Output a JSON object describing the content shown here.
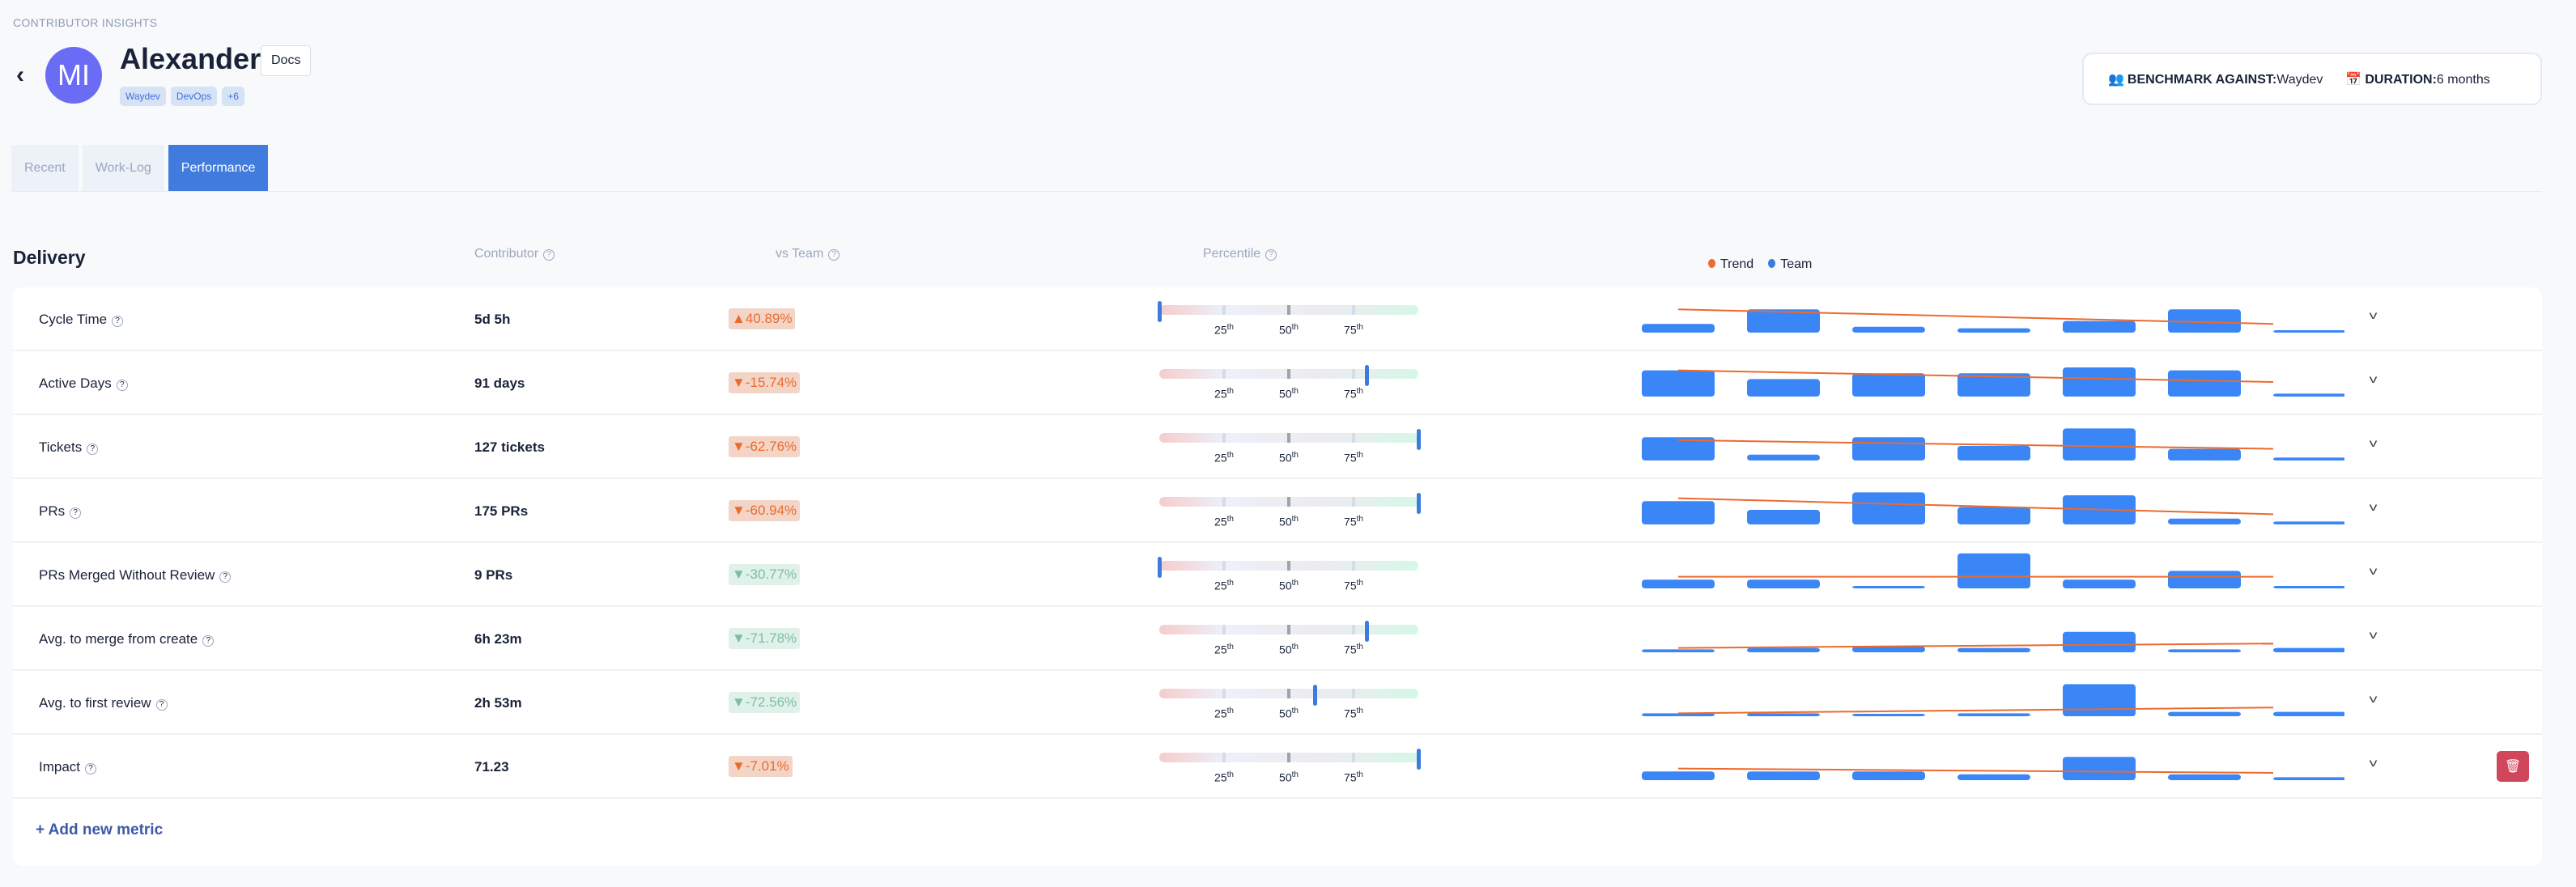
{
  "breadcrumb": "CONTRIBUTOR INSIGHTS",
  "profile": {
    "initials": "MI",
    "name": "Alexander",
    "docs_label": "Docs",
    "tags": [
      "Waydev",
      "DevOps",
      "+6"
    ]
  },
  "benchmark": {
    "label": "BENCHMARK AGAINST:",
    "value": "Waydev",
    "duration_label": "DURATION:",
    "duration_value": "6 months"
  },
  "tabs": [
    "Recent",
    "Work-Log",
    "Performance"
  ],
  "active_tab": "Performance",
  "table": {
    "section": "Delivery",
    "col_contributor": "Contributor",
    "col_vs_team": "vs Team",
    "col_percentile": "Percentile",
    "percentile_labels": [
      {
        "n": "25",
        "s": "th"
      },
      {
        "n": "50",
        "s": "th"
      },
      {
        "n": "75",
        "s": "th"
      }
    ],
    "legend": [
      {
        "label": "Trend",
        "color": "#ec6a2e"
      },
      {
        "label": "Team",
        "color": "#3c7be0"
      }
    ]
  },
  "colors": {
    "accent": "#427bde",
    "bar": "#3b86f7",
    "trend": "#ec6a2e",
    "delete": "#d0465a"
  },
  "metrics": [
    {
      "label": "Cycle Time",
      "value": "5d 5h",
      "vs_team": "▲40.89%",
      "status": "bad",
      "percentile": 0,
      "bars": [
        3,
        8,
        2,
        1.5,
        4,
        8,
        0.5
      ],
      "trend": [
        8,
        3
      ]
    },
    {
      "label": "Active Days",
      "value": "91 days",
      "vs_team": "▼-15.74%",
      "status": "bad",
      "percentile": 0.8,
      "bars": [
        9,
        6,
        8,
        8,
        10,
        9,
        1
      ],
      "trend": [
        9,
        5
      ]
    },
    {
      "label": "Tickets",
      "value": "127 tickets",
      "vs_team": "▼-62.76%",
      "status": "bad",
      "percentile": 1,
      "bars": [
        8,
        2,
        8,
        5,
        11,
        4,
        1
      ],
      "trend": [
        7,
        4
      ]
    },
    {
      "label": "PRs",
      "value": "175 PRs",
      "vs_team": "▼-60.94%",
      "status": "bad",
      "percentile": 1,
      "bars": [
        8,
        5,
        11,
        6,
        10,
        2,
        1
      ],
      "trend": [
        9,
        3.5
      ]
    },
    {
      "label": "PRs Merged Without Review",
      "value": "9 PRs",
      "vs_team": "▼-30.77%",
      "status": "good",
      "percentile": 0,
      "bars": [
        3,
        3,
        0,
        12,
        3,
        6,
        0
      ],
      "trend": [
        4,
        4
      ]
    },
    {
      "label": "Avg. to merge from create",
      "value": "6h 23m",
      "vs_team": "▼-71.78%",
      "status": "good",
      "percentile": 0.8,
      "bars": [
        1,
        1.5,
        2,
        1.5,
        7,
        1,
        1.5
      ],
      "trend": [
        1.5,
        3
      ]
    },
    {
      "label": "Avg. to first review",
      "value": "2h 53m",
      "vs_team": "▼-72.56%",
      "status": "good",
      "percentile": 0.6,
      "bars": [
        1,
        1,
        0.5,
        1,
        11,
        1.5,
        1.5
      ],
      "trend": [
        1,
        3
      ]
    },
    {
      "label": "Impact",
      "value": "71.23",
      "vs_team": "▼-7.01%",
      "status": "bad",
      "percentile": 1,
      "bars": [
        3,
        3,
        3,
        2,
        8,
        2,
        1
      ],
      "trend": [
        4,
        2.5
      ]
    }
  ],
  "add_metric": "+ Add new metric"
}
